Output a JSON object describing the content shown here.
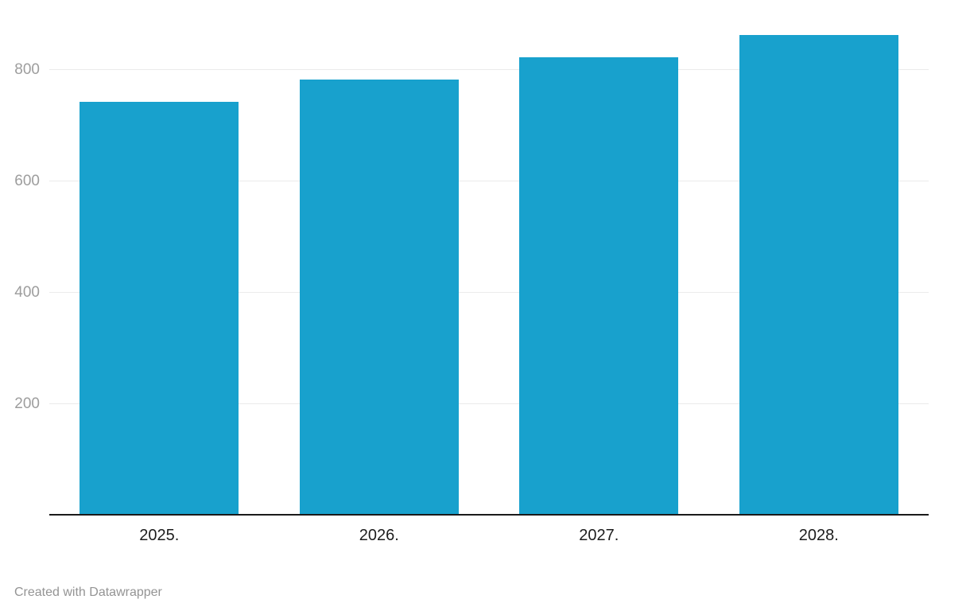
{
  "chart_data": {
    "type": "bar",
    "categories": [
      "2025.",
      "2026.",
      "2027.",
      "2028."
    ],
    "values": [
      740,
      780,
      820,
      860
    ],
    "title": "",
    "xlabel": "",
    "ylabel": "",
    "ylim": [
      0,
      900
    ],
    "yticks": [
      200,
      400,
      600,
      800
    ],
    "grid": true,
    "legend": "none"
  },
  "footer": {
    "attribution": "Created with Datawrapper"
  },
  "colors": {
    "bar": "#18a1cd",
    "gridline": "#ebebeb",
    "axis_line": "#1a1a1a",
    "y_tick_label": "#9d9d9d",
    "x_tick_label": "#1d1d1d",
    "footer_text": "#949494"
  }
}
